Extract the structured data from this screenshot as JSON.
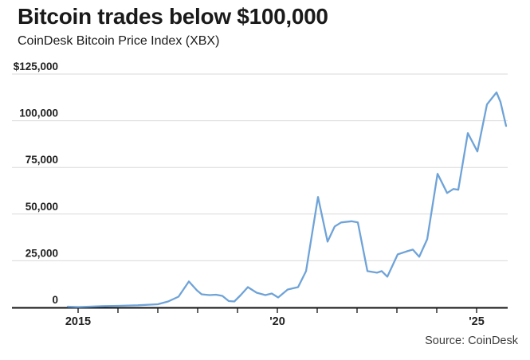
{
  "header": {
    "title": "Bitcoin trades below $100,000",
    "subtitle": "CoinDesk Bitcoin Price Index (XBX)"
  },
  "footer": {
    "source": "Source: CoinDesk"
  },
  "chart_data": {
    "type": "line",
    "title": "Bitcoin trades below $100,000",
    "subtitle": "CoinDesk Bitcoin Price Index (XBX)",
    "source": "Source: CoinDesk",
    "xlabel": "",
    "ylabel": "",
    "x_unit": "year",
    "y_unit": "USD",
    "ylim": [
      0,
      125000
    ],
    "xlim": [
      2013.3,
      2025.8
    ],
    "grid": "horizontal",
    "legend": "none",
    "colors": {
      "line": "#6FA3D8",
      "grid": "#DADADA",
      "axis": "#111111",
      "tick_text": "#222222"
    },
    "y_ticks": [
      {
        "value": 125000,
        "label": "$125,000"
      },
      {
        "value": 100000,
        "label": "100,000"
      },
      {
        "value": 75000,
        "label": "75,000"
      },
      {
        "value": 50000,
        "label": "50,000"
      },
      {
        "value": 25000,
        "label": "25,000"
      },
      {
        "value": 0,
        "label": "0"
      }
    ],
    "x_ticks": [
      {
        "year": 2015,
        "label": "2015"
      },
      {
        "year": 2016,
        "label": ""
      },
      {
        "year": 2017,
        "label": ""
      },
      {
        "year": 2018,
        "label": ""
      },
      {
        "year": 2019,
        "label": ""
      },
      {
        "year": 2020,
        "label": "'20"
      },
      {
        "year": 2021,
        "label": ""
      },
      {
        "year": 2022,
        "label": ""
      },
      {
        "year": 2023,
        "label": ""
      },
      {
        "year": 2024,
        "label": ""
      },
      {
        "year": 2025,
        "label": "'25"
      }
    ],
    "series": [
      {
        "name": "CoinDesk Bitcoin Price Index (XBX)",
        "points": [
          [
            2014.74,
            430
          ],
          [
            2015.0,
            220
          ],
          [
            2015.28,
            430
          ],
          [
            2015.54,
            640
          ],
          [
            2016.0,
            860
          ],
          [
            2016.5,
            1150
          ],
          [
            2017.0,
            1710
          ],
          [
            2017.26,
            3210
          ],
          [
            2017.52,
            5770
          ],
          [
            2017.78,
            13900
          ],
          [
            2017.98,
            9190
          ],
          [
            2018.1,
            7050
          ],
          [
            2018.3,
            6620
          ],
          [
            2018.46,
            6840
          ],
          [
            2018.62,
            6200
          ],
          [
            2018.78,
            3420
          ],
          [
            2018.92,
            3210
          ],
          [
            2019.08,
            6620
          ],
          [
            2019.26,
            10900
          ],
          [
            2019.48,
            7910
          ],
          [
            2019.7,
            6620
          ],
          [
            2019.86,
            7480
          ],
          [
            2020.02,
            5340
          ],
          [
            2020.26,
            9620
          ],
          [
            2020.52,
            10900
          ],
          [
            2020.72,
            19440
          ],
          [
            2021.02,
            59190
          ],
          [
            2021.26,
            35260
          ],
          [
            2021.44,
            43380
          ],
          [
            2021.6,
            45510
          ],
          [
            2021.86,
            46150
          ],
          [
            2022.02,
            45510
          ],
          [
            2022.26,
            19440
          ],
          [
            2022.5,
            18590
          ],
          [
            2022.62,
            19440
          ],
          [
            2022.76,
            16450
          ],
          [
            2023.02,
            28420
          ],
          [
            2023.26,
            30130
          ],
          [
            2023.4,
            30980
          ],
          [
            2023.56,
            27140
          ],
          [
            2023.76,
            36540
          ],
          [
            2024.02,
            71580
          ],
          [
            2024.26,
            61320
          ],
          [
            2024.42,
            63460
          ],
          [
            2024.54,
            63030
          ],
          [
            2024.78,
            93380
          ],
          [
            2025.02,
            83550
          ],
          [
            2025.26,
            108760
          ],
          [
            2025.5,
            115170
          ],
          [
            2025.6,
            110040
          ],
          [
            2025.74,
            97220
          ]
        ]
      }
    ]
  }
}
